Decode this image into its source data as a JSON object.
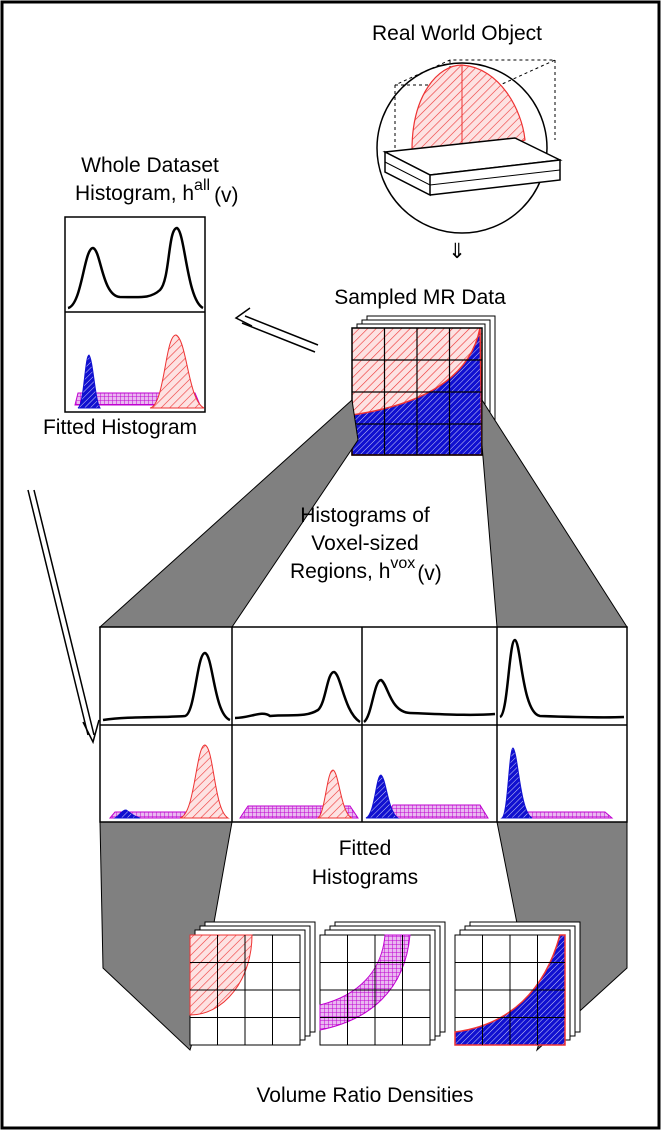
{
  "real_world_object": "Real World Object",
  "whole_dataset": {
    "line1": "Whole Dataset",
    "line2": "Histogram, h",
    "superscript": "all",
    "suffix": "(v)"
  },
  "sampled_mr_data": "Sampled MR Data",
  "fitted_histogram": "Fitted Histogram",
  "voxel_histograms": {
    "line1": "Histograms of",
    "line2": "Voxel-sized",
    "line3": "Regions, h",
    "superscript": "vox",
    "suffix": "(v)"
  },
  "fitted_histograms": {
    "line1": "Fitted",
    "line2": "Histograms"
  },
  "volume_ratio_densities": "Volume Ratio Densities"
}
